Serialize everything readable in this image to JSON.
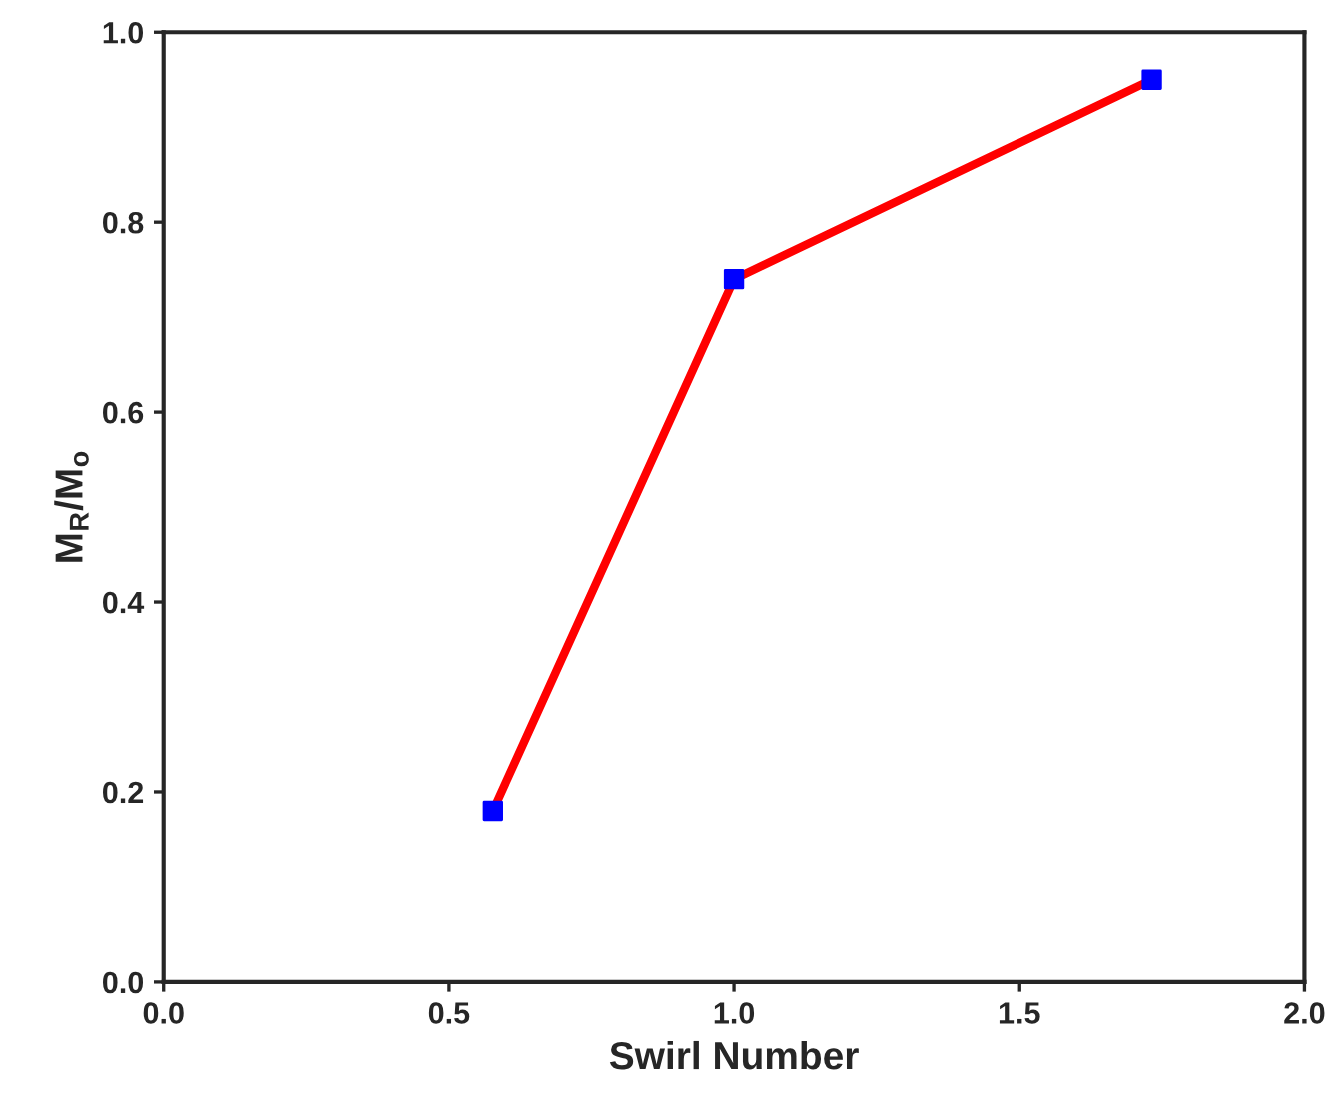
{
  "chart_data": {
    "type": "line",
    "xlabel": "Swirl Number",
    "ylabel": "M$_{R}$/M$_{o}$",
    "xlim": [
      0,
      2
    ],
    "ylim": [
      0,
      1
    ],
    "xticks": [
      {
        "value": 0,
        "label": "0.0"
      },
      {
        "value": 0.5,
        "label": "0.5"
      },
      {
        "value": 1,
        "label": "1.0"
      },
      {
        "value": 1.5,
        "label": "1.5"
      },
      {
        "value": 2,
        "label": "2.0"
      }
    ],
    "yticks": [
      {
        "value": 0,
        "label": "0.0"
      },
      {
        "value": 0.2,
        "label": "0.2"
      },
      {
        "value": 0.4,
        "label": "0.4"
      },
      {
        "value": 0.6,
        "label": "0.6"
      },
      {
        "value": 0.8,
        "label": "0.8"
      },
      {
        "value": 1,
        "label": "1.0"
      }
    ],
    "grid": false,
    "legend": false,
    "series": [
      {
        "color": "#ff0000",
        "marker": "none",
        "x": [
          0.577,
          1.0,
          1.732
        ],
        "values": [
          0.18,
          0.74,
          0.95
        ]
      },
      {
        "type": "scatter",
        "color": "#0000ff",
        "marker": "square",
        "x": [
          0.577,
          1.0,
          1.732
        ],
        "values": [
          0.18,
          0.74,
          0.95
        ]
      }
    ]
  }
}
